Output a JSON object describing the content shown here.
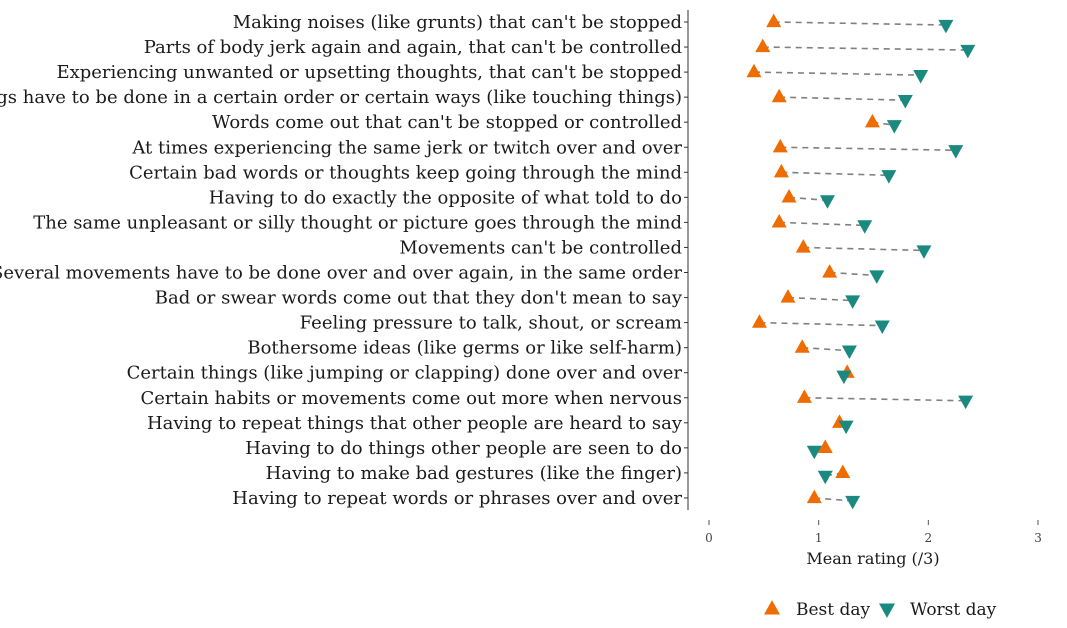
{
  "chart_data": {
    "type": "scatter",
    "xlabel": "Mean rating (/3)",
    "xlim": [
      0,
      3
    ],
    "xticks": [
      0,
      1,
      2,
      3
    ],
    "grid": false,
    "legend_position": "bottom",
    "categories": [
      "Making noises (like grunts) that can't be stopped",
      "Parts of body jerk again and again, that can't be controlled",
      "Experiencing unwanted or upsetting thoughts, that can't be stopped",
      "Things have to be done in a certain order or certain ways (like touching things)",
      "Words come out that can't be stopped or controlled",
      "At times experiencing the same jerk or twitch over and over",
      "Certain bad words or thoughts keep going through the mind",
      "Having to do exactly the opposite of what told to do",
      "The same unpleasant or silly thought or picture goes through the mind",
      "Movements can't be controlled",
      "Several movements have to be done over and over again, in the same order",
      "Bad or swear words come out that they don't mean to say",
      "Feeling pressure to talk, shout, or scream",
      "Bothersome ideas (like germs or like self-harm)",
      "Certain things (like jumping or clapping) done over and over",
      "Certain habits or movements come out more when nervous",
      "Having to repeat things that other people are heard to say",
      "Having to do things other people are seen to do",
      "Having to make bad gestures (like the finger)",
      "Having to repeat words or phrases over and over"
    ],
    "series": [
      {
        "name": "Best day",
        "marker": "triangle-up",
        "color": "#ef6c00",
        "values": [
          0.59,
          0.49,
          0.41,
          0.64,
          1.49,
          0.65,
          0.66,
          0.73,
          0.64,
          0.86,
          1.1,
          0.72,
          0.46,
          0.85,
          1.26,
          0.87,
          1.19,
          1.06,
          1.22,
          0.96
        ]
      },
      {
        "name": "Worst day",
        "marker": "triangle-down",
        "color": "#1a8a80",
        "values": [
          2.16,
          2.36,
          1.93,
          1.79,
          1.69,
          2.25,
          1.64,
          1.08,
          1.42,
          1.96,
          1.53,
          1.31,
          1.58,
          1.28,
          1.23,
          2.34,
          1.25,
          0.96,
          1.06,
          1.31
        ]
      }
    ],
    "connector_color": "#808080"
  }
}
